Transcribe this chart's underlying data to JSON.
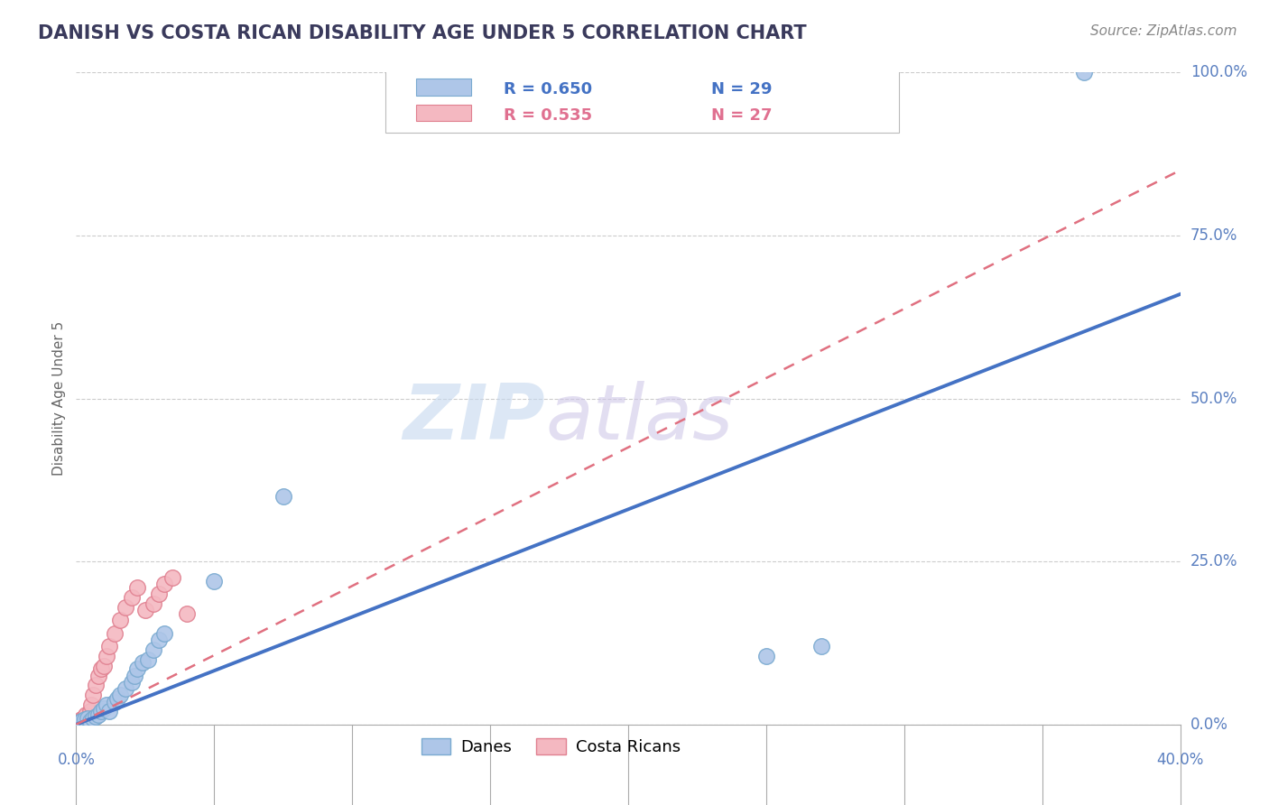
{
  "title": "DANISH VS COSTA RICAN DISABILITY AGE UNDER 5 CORRELATION CHART",
  "source": "Source: ZipAtlas.com",
  "ylabel": "Disability Age Under 5",
  "ytick_labels": [
    "0.0%",
    "25.0%",
    "50.0%",
    "75.0%",
    "100.0%"
  ],
  "ytick_values": [
    0.0,
    25.0,
    50.0,
    75.0,
    100.0
  ],
  "xtick_labels": [
    "0.0%",
    "40.0%"
  ],
  "xtick_values": [
    0.0,
    40.0
  ],
  "xlim": [
    0.0,
    40.0
  ],
  "ylim": [
    0.0,
    100.0
  ],
  "legend_entries": [
    {
      "label": "Danes",
      "color": "#aec6e8",
      "edge_color": "#7aaad0",
      "R": "0.650",
      "N": "29",
      "text_color": "#4472c4"
    },
    {
      "label": "Costa Ricans",
      "color": "#f4b8c1",
      "edge_color": "#e08090",
      "R": "0.535",
      "N": "27",
      "text_color": "#e07090"
    }
  ],
  "danes_scatter_x": [
    0.1,
    0.2,
    0.3,
    0.4,
    0.5,
    0.6,
    0.7,
    0.8,
    0.9,
    1.0,
    1.1,
    1.2,
    1.4,
    1.5,
    1.6,
    1.8,
    2.0,
    2.1,
    2.2,
    2.4,
    2.6,
    2.8,
    3.0,
    3.2,
    5.0,
    7.5,
    25.0,
    27.0,
    36.5
  ],
  "danes_scatter_y": [
    0.3,
    0.5,
    0.8,
    1.0,
    0.5,
    1.0,
    1.2,
    1.5,
    2.0,
    2.5,
    3.0,
    2.0,
    3.5,
    4.0,
    4.5,
    5.5,
    6.5,
    7.5,
    8.5,
    9.5,
    10.0,
    11.5,
    13.0,
    14.0,
    22.0,
    35.0,
    10.5,
    12.0,
    100.0
  ],
  "costa_scatter_x": [
    0.1,
    0.15,
    0.2,
    0.25,
    0.3,
    0.35,
    0.4,
    0.5,
    0.55,
    0.6,
    0.7,
    0.8,
    0.9,
    1.0,
    1.1,
    1.2,
    1.4,
    1.6,
    1.8,
    2.0,
    2.2,
    2.5,
    2.8,
    3.0,
    3.2,
    3.5,
    4.0
  ],
  "costa_scatter_y": [
    0.3,
    0.5,
    0.8,
    1.0,
    1.2,
    1.5,
    0.8,
    2.0,
    3.0,
    4.5,
    6.0,
    7.5,
    8.5,
    9.0,
    10.5,
    12.0,
    14.0,
    16.0,
    18.0,
    19.5,
    21.0,
    17.5,
    18.5,
    20.0,
    21.5,
    22.5,
    17.0
  ],
  "danes_line_x": [
    0.0,
    40.0
  ],
  "danes_line_y": [
    0.0,
    66.0
  ],
  "costa_line_x": [
    0.0,
    40.0
  ],
  "costa_line_y": [
    0.0,
    85.0
  ],
  "background_color": "#ffffff",
  "grid_color": "#cccccc",
  "title_color": "#3a3a5c",
  "axis_label_color": "#5a7fc0",
  "dane_color": "#aec6e8",
  "dane_edge_color": "#7aaad0",
  "costa_color": "#f4b8c1",
  "costa_edge_color": "#e08090",
  "dane_line_color": "#4472c4",
  "costa_line_color": "#e07080",
  "watermark_zip_color": "#c5d8ef",
  "watermark_atlas_color": "#d0c8e8"
}
